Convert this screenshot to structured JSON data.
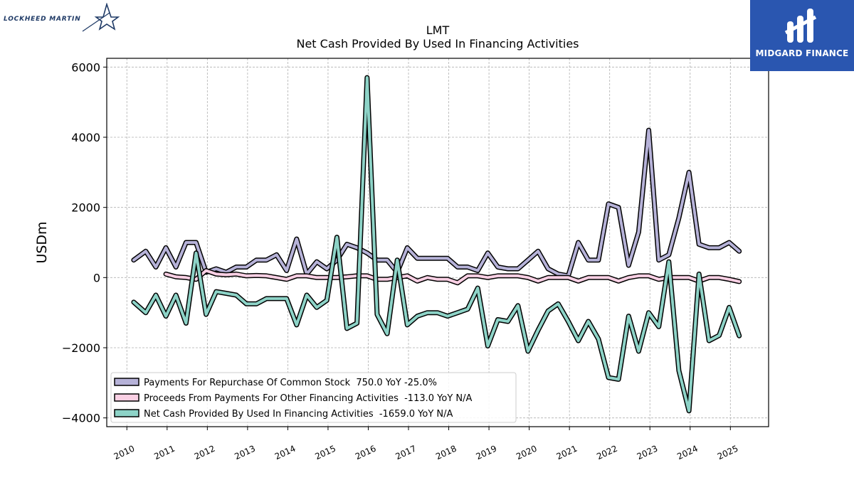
{
  "header": {
    "ticker": "LMT",
    "title": "Net Cash Provided By Used In Financing Activities"
  },
  "brands": {
    "left_logo": "LOCKHEED MARTIN",
    "right_logo": "MIDGARD FINANCE",
    "right_color": "#2a56b0"
  },
  "chart_data": {
    "type": "line",
    "title": "LMT\nNet Cash Provided By Used In Financing Activities",
    "xlabel": "",
    "ylabel": "USDm",
    "xlim": [
      2009.5,
      2025.95
    ],
    "ylim": [
      -4250,
      6250
    ],
    "yticks": [
      -4000,
      -2000,
      0,
      2000,
      4000,
      6000
    ],
    "xticks": [
      "2010",
      "2011",
      "2012",
      "2013",
      "2014",
      "2015",
      "2016",
      "2017",
      "2018",
      "2019",
      "2020",
      "2021",
      "2022",
      "2023",
      "2024",
      "2025"
    ],
    "grid": true,
    "legend_position": "lower-left",
    "series": [
      {
        "name": "Payments For Repurchase Of Common Stock  750.0 YoY -25.0%",
        "color": "#b6b2d8",
        "x": [
          2010.17,
          2010.47,
          2010.72,
          2010.97,
          2011.22,
          2011.47,
          2011.72,
          2011.97,
          2012.22,
          2012.47,
          2012.72,
          2012.97,
          2013.22,
          2013.47,
          2013.72,
          2013.97,
          2014.22,
          2014.47,
          2014.72,
          2014.97,
          2015.22,
          2015.47,
          2015.72,
          2015.97,
          2016.22,
          2016.47,
          2016.72,
          2016.97,
          2017.22,
          2017.47,
          2017.72,
          2017.97,
          2018.22,
          2018.47,
          2018.72,
          2018.97,
          2019.22,
          2019.47,
          2019.72,
          2019.97,
          2020.22,
          2020.47,
          2020.72,
          2020.97,
          2021.22,
          2021.47,
          2021.72,
          2021.97,
          2022.22,
          2022.47,
          2022.72,
          2022.97,
          2023.22,
          2023.47,
          2023.72,
          2023.97,
          2024.22,
          2024.47,
          2024.72,
          2024.97,
          2025.22
        ],
        "values": [
          500,
          750,
          300,
          850,
          300,
          1000,
          1000,
          150,
          250,
          150,
          300,
          300,
          500,
          500,
          650,
          200,
          1100,
          100,
          450,
          250,
          500,
          950,
          850,
          700,
          500,
          500,
          150,
          850,
          550,
          550,
          550,
          550,
          300,
          300,
          200,
          700,
          300,
          250,
          250,
          500,
          750,
          250,
          100,
          50,
          1000,
          500,
          500,
          2100,
          2000,
          350,
          1300,
          4200,
          500,
          650,
          1700,
          3000,
          950,
          850,
          850,
          1000,
          750
        ]
      },
      {
        "name": "Proceeds From Payments For Other Financing Activities  -113.0 YoY N/A",
        "color": "#fad0e4",
        "x": [
          2010.97,
          2011.22,
          2011.47,
          2011.72,
          2011.97,
          2012.22,
          2012.47,
          2012.72,
          2012.97,
          2013.22,
          2013.47,
          2013.72,
          2013.97,
          2014.22,
          2014.47,
          2014.72,
          2014.97,
          2015.22,
          2015.47,
          2015.72,
          2015.97,
          2016.22,
          2016.47,
          2016.72,
          2016.97,
          2017.22,
          2017.47,
          2017.72,
          2017.97,
          2018.22,
          2018.47,
          2018.72,
          2018.97,
          2019.22,
          2019.47,
          2019.72,
          2019.97,
          2020.22,
          2020.47,
          2020.72,
          2020.97,
          2021.22,
          2021.47,
          2021.72,
          2021.97,
          2022.22,
          2022.47,
          2022.72,
          2022.97,
          2023.22,
          2023.47,
          2023.72,
          2023.97,
          2024.22,
          2024.47,
          2024.72,
          2024.97,
          2025.22
        ],
        "values": [
          100,
          20,
          0,
          -50,
          200,
          100,
          80,
          100,
          50,
          60,
          50,
          0,
          -50,
          50,
          50,
          0,
          0,
          0,
          20,
          50,
          50,
          -50,
          -50,
          0,
          50,
          -100,
          0,
          -50,
          -50,
          -150,
          50,
          50,
          0,
          50,
          50,
          50,
          0,
          -100,
          0,
          0,
          0,
          -100,
          0,
          0,
          0,
          -100,
          0,
          50,
          50,
          -50,
          0,
          0,
          0,
          -100,
          0,
          0,
          -50,
          -113
        ]
      },
      {
        "name": "Net Cash Provided By Used In Financing Activities  -1659.0 YoY N/A",
        "color": "#8dd3c7",
        "x": [
          2010.17,
          2010.47,
          2010.72,
          2010.97,
          2011.22,
          2011.47,
          2011.72,
          2011.97,
          2012.22,
          2012.47,
          2012.72,
          2012.97,
          2013.22,
          2013.47,
          2013.72,
          2013.97,
          2014.22,
          2014.47,
          2014.72,
          2014.97,
          2015.22,
          2015.47,
          2015.72,
          2015.97,
          2016.22,
          2016.47,
          2016.72,
          2016.97,
          2017.22,
          2017.47,
          2017.72,
          2017.97,
          2018.22,
          2018.47,
          2018.72,
          2018.97,
          2019.22,
          2019.47,
          2019.72,
          2019.97,
          2020.22,
          2020.47,
          2020.72,
          2020.97,
          2021.22,
          2021.47,
          2021.72,
          2021.97,
          2022.22,
          2022.47,
          2022.72,
          2022.97,
          2023.22,
          2023.47,
          2023.72,
          2023.97,
          2024.22,
          2024.47,
          2024.72,
          2024.97,
          2025.22
        ],
        "values": [
          -700,
          -1000,
          -500,
          -1100,
          -500,
          -1300,
          700,
          -1050,
          -400,
          -450,
          -500,
          -750,
          -750,
          -600,
          -600,
          -600,
          -1350,
          -500,
          -850,
          -650,
          1150,
          -1450,
          -1300,
          5700,
          -1050,
          -1600,
          500,
          -1350,
          -1100,
          -1000,
          -1000,
          -1100,
          -1000,
          -900,
          -300,
          -1950,
          -1200,
          -1250,
          -800,
          -2100,
          -1500,
          -950,
          -750,
          -1250,
          -1800,
          -1250,
          -1750,
          -2850,
          -2900,
          -1100,
          -2100,
          -1000,
          -1400,
          450,
          -2650,
          -3800,
          100,
          -1800,
          -1650,
          -850,
          -1659
        ]
      }
    ]
  }
}
